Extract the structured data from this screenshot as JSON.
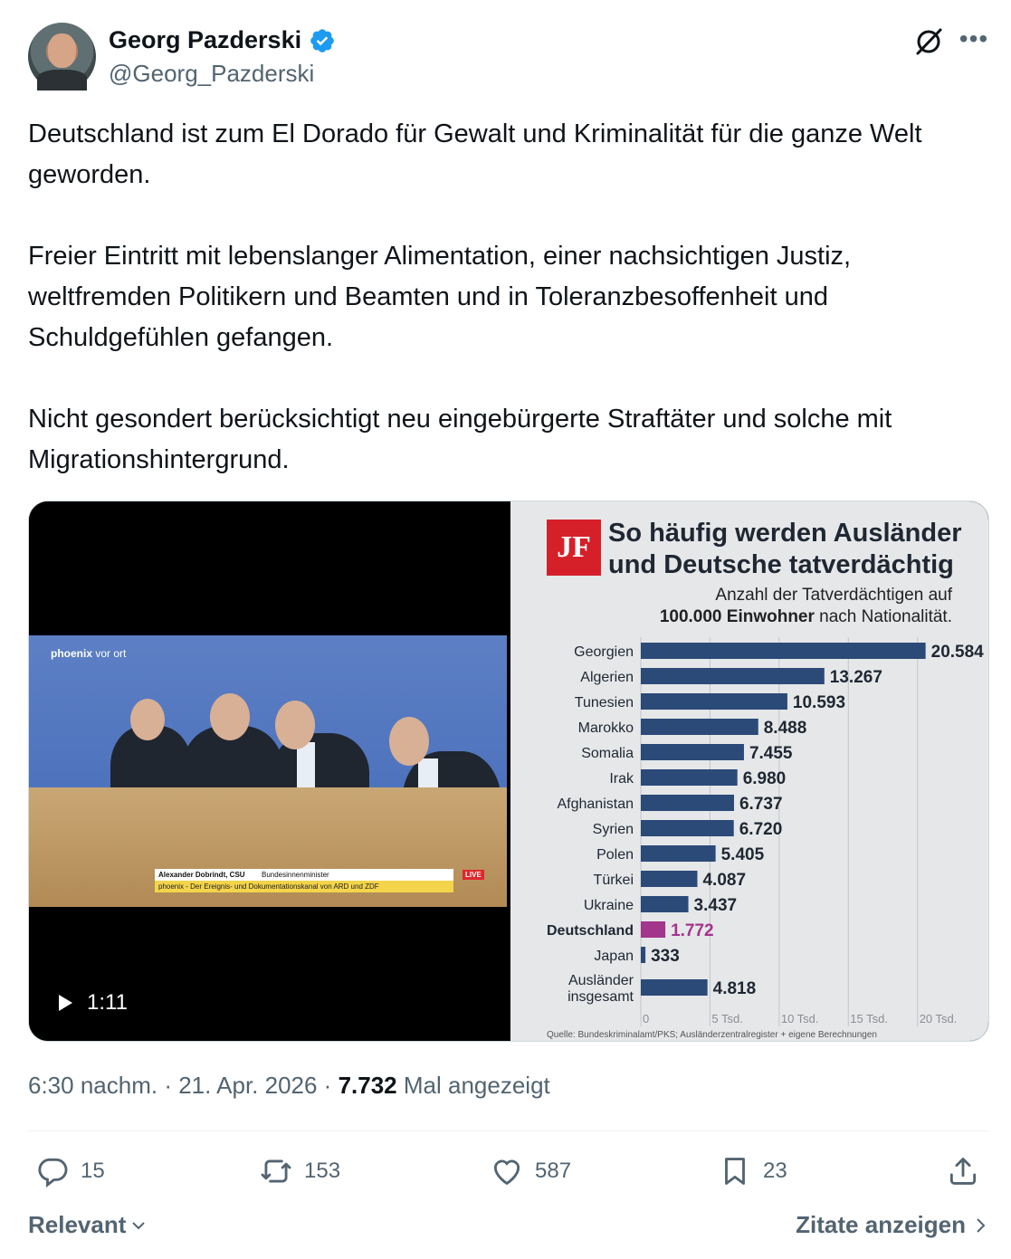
{
  "author": {
    "name": "Georg Pazderski",
    "handle": "@Georg_Pazderski"
  },
  "tweet": {
    "paragraphs": [
      "Deutschland ist zum El Dorado für Gewalt und Kriminalität für die ganze Welt geworden.",
      "Freier Eintritt mit lebenslanger Alimentation, einer nachsichtigen Justiz, weltfremden Politikern und Beamten und in Toleranzbesoffenheit und Schuldgefühlen gefangen.",
      "Nicht gesondert berücksichtigt neu eingebürgerte Straftäter und solche mit Migrationshintergrund."
    ]
  },
  "video": {
    "duration": "1:11",
    "channel": "phoenix",
    "channel_suffix": "vor ort",
    "lower_third_name": "Alexander Dobrindt, CSU",
    "lower_third_role": "Bundesinnenminister",
    "lower_third_channel": "phoenix - Der Ereignis- und Dokumentationskanal von ARD und ZDF",
    "live_label": "LIVE"
  },
  "chart_data": {
    "type": "bar",
    "orientation": "horizontal",
    "logo": "JF",
    "title_line1": "So häufig werden Ausländer",
    "title_line2": "und Deutsche tatverdächtig",
    "subtitle_line1": "Anzahl der Tatverdächtigen auf",
    "subtitle_bold": "100.000 Einwohner",
    "subtitle_rest": "nach Nationalität.",
    "categories": [
      "Georgien",
      "Algerien",
      "Tunesien",
      "Marokko",
      "Somalia",
      "Irak",
      "Afghanistan",
      "Syrien",
      "Polen",
      "Türkei",
      "Ukraine",
      "Deutschland",
      "Japan",
      "Ausländer insgesamt"
    ],
    "category_lines": [
      [
        "Georgien"
      ],
      [
        "Algerien"
      ],
      [
        "Tunesien"
      ],
      [
        "Marokko"
      ],
      [
        "Somalia"
      ],
      [
        "Irak"
      ],
      [
        "Afghanistan"
      ],
      [
        "Syrien"
      ],
      [
        "Polen"
      ],
      [
        "Türkei"
      ],
      [
        "Ukraine"
      ],
      [
        "Deutschland"
      ],
      [
        "Japan"
      ],
      [
        "Ausländer",
        "insgesamt"
      ]
    ],
    "values": [
      20584,
      13267,
      10593,
      8488,
      7455,
      6980,
      6737,
      6720,
      5405,
      4087,
      3437,
      1772,
      333,
      4818
    ],
    "value_labels": [
      "20.584",
      "13.267",
      "10.593",
      "8.488",
      "7.455",
      "6.980",
      "6.737",
      "6.720",
      "5.405",
      "4.087",
      "3.437",
      "1.772",
      "333",
      "4.818"
    ],
    "highlight": "Deutschland",
    "xlim": [
      0,
      22000
    ],
    "xticks": [
      0,
      5000,
      10000,
      15000,
      20000
    ],
    "xtick_labels": [
      "0",
      "5 Tsd.",
      "10 Tsd.",
      "15 Tsd.",
      "20 Tsd."
    ],
    "colors": {
      "bar": "#2b4a78",
      "highlight": "#a2358c"
    },
    "source": "Quelle: Bundeskriminalamt/PKS; Ausländerzentralregister + eigene Berechnungen"
  },
  "meta": {
    "time": "6:30 nachm.",
    "date": "21. Apr. 2026",
    "views": "7.732",
    "views_label": "Mal angezeigt"
  },
  "actions": {
    "replies": "15",
    "retweets": "153",
    "likes": "587",
    "bookmarks": "23"
  },
  "footer": {
    "sort_label": "Relevant",
    "quotes_label": "Zitate anzeigen"
  }
}
